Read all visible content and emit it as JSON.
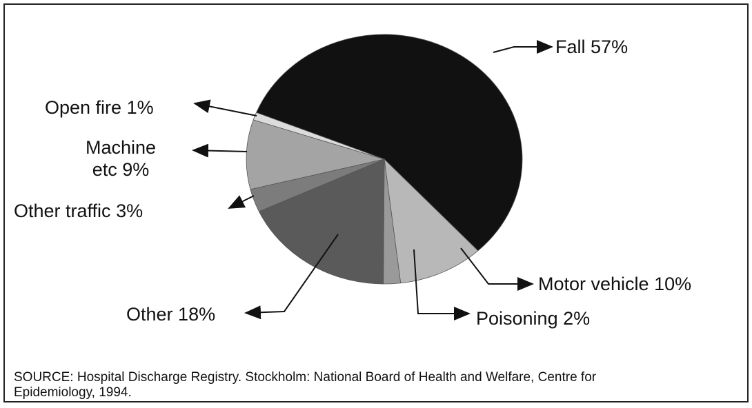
{
  "chart_data": {
    "type": "pie",
    "categories": [
      "Fall",
      "Motor vehicle",
      "Poisoning",
      "Other",
      "Other traffic",
      "Machine etc",
      "Open fire"
    ],
    "values": [
      57,
      10,
      2,
      18,
      3,
      9,
      1
    ],
    "value_labels": [
      "57%",
      "10%",
      "2%",
      "18%",
      "3%",
      "9%",
      "1%"
    ],
    "colors": [
      "#111111",
      "#b8b8b8",
      "#9a9a9a",
      "#5a5a5a",
      "#7c7c7c",
      "#a4a4a4",
      "#dcdcdc"
    ],
    "source": "SOURCE: Hospital Discharge Registry. Stockholm: National Board of Health and Welfare, Centre for Epidemiology, 1994."
  }
}
